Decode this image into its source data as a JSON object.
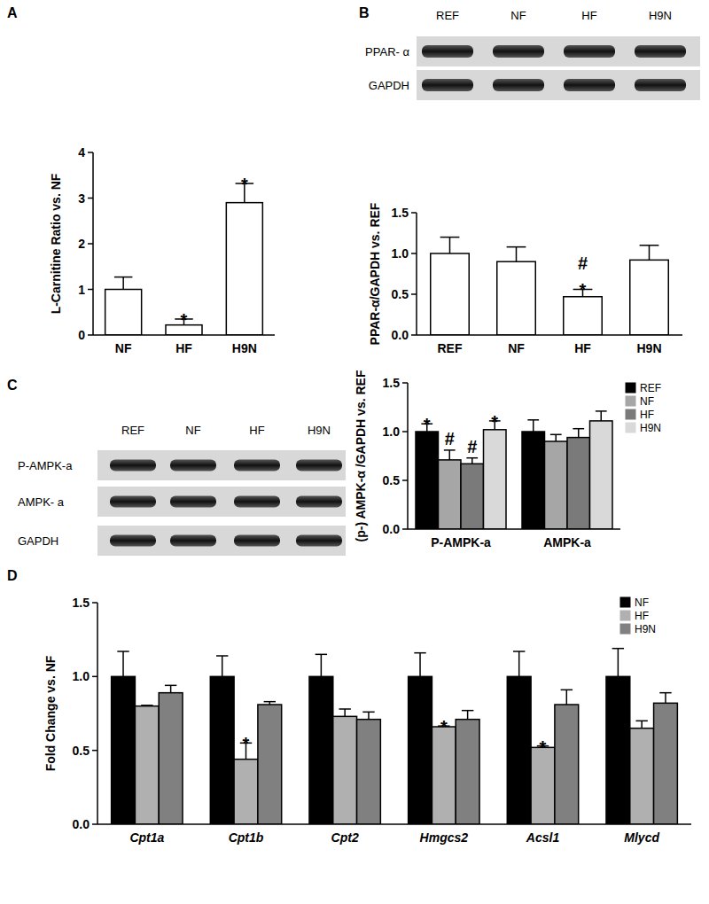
{
  "chart_data": [
    {
      "type": "bar",
      "categories": [
        "NF",
        "HF",
        "H9N"
      ],
      "values": [
        1.0,
        0.22,
        2.9
      ],
      "errors": [
        0.27,
        0.13,
        0.42
      ],
      "annotations": [
        null,
        [
          "*"
        ],
        [
          "*"
        ]
      ],
      "color": "#ffffff",
      "y_label": "L-Carnitine  Ratio vs. NF",
      "ylim": [
        0,
        4
      ],
      "yticks": [
        0,
        1,
        2,
        3,
        4
      ]
    },
    {
      "type": "bar",
      "categories": [
        "REF",
        "NF",
        "HF",
        "H9N"
      ],
      "values": [
        1.0,
        0.9,
        0.47,
        0.92
      ],
      "errors": [
        0.2,
        0.18,
        0.09,
        0.18
      ],
      "annotations": [
        null,
        null,
        [
          "*",
          "#"
        ],
        null
      ],
      "color": "#ffffff",
      "y_label": "PPAR-α/GAPDH vs. REF",
      "ylim": [
        0,
        1.5
      ],
      "yticks": [
        {
          "value": 0,
          "label": "0.0"
        },
        {
          "value": 0.5,
          "label": "0.5"
        },
        {
          "value": 1,
          "label": "1.0"
        },
        {
          "value": 1.5,
          "label": "1.5"
        }
      ]
    },
    {
      "type": "bar",
      "categories": [
        "P-AMPK-a",
        "AMPK-a"
      ],
      "y_label": "(p-) AMPK-α /GAPDH vs. REF",
      "legend": "upper right",
      "series": [
        {
          "name": "REF",
          "color": "#000000",
          "values": [
            1.0,
            1.0
          ],
          "errors": [
            0.08,
            0.12
          ],
          "annotations": [
            [
              "*"
            ],
            null
          ]
        },
        {
          "name": "NF",
          "color": "#a6a6a6",
          "values": [
            0.71,
            0.9
          ],
          "errors": [
            0.1,
            0.07
          ],
          "annotations": [
            [
              "#"
            ],
            null
          ]
        },
        {
          "name": "HF",
          "color": "#7a7a7a",
          "values": [
            0.67,
            0.94
          ],
          "errors": [
            0.06,
            0.09
          ],
          "annotations": [
            [
              "#"
            ],
            null
          ]
        },
        {
          "name": "H9N",
          "color": "#d9d9d9",
          "values": [
            1.02,
            1.11
          ],
          "errors": [
            0.09,
            0.1
          ],
          "annotations": [
            [
              "*"
            ],
            null
          ]
        }
      ],
      "ylim": [
        0,
        1.5
      ],
      "yticks": [
        {
          "value": 0,
          "label": "0.0"
        },
        {
          "value": 0.5,
          "label": "0.5"
        },
        {
          "value": 1,
          "label": "1.0"
        },
        {
          "value": 1.5,
          "label": "1.5"
        }
      ]
    },
    {
      "type": "bar",
      "categories": [
        "Cpt1a",
        "Cpt1b",
        "Cpt2",
        "Hmgcs2",
        "Acsl1",
        "Mlycd"
      ],
      "y_label": "Fold Change vs. NF",
      "legend": "upper right",
      "series": [
        {
          "name": "NF",
          "color": "#000000",
          "values": [
            1.0,
            1.0,
            1.0,
            1.0,
            1.0,
            1.0
          ],
          "errors": [
            0.17,
            0.14,
            0.15,
            0.16,
            0.17,
            0.19
          ],
          "annotations": [
            null,
            null,
            null,
            null,
            null,
            null
          ]
        },
        {
          "name": "HF",
          "color": "#b0b0b0",
          "values": [
            0.8,
            0.44,
            0.73,
            0.66,
            0.52,
            0.65
          ],
          "errors": [
            0.005,
            0.11,
            0.05,
            0.005,
            0.01,
            0.05
          ],
          "annotations": [
            null,
            [
              "*"
            ],
            null,
            [
              "*"
            ],
            [
              "*"
            ],
            null
          ]
        },
        {
          "name": "H9N",
          "color": "#808080",
          "values": [
            0.89,
            0.81,
            0.71,
            0.71,
            0.81,
            0.82
          ],
          "errors": [
            0.05,
            0.02,
            0.05,
            0.06,
            0.1,
            0.07
          ],
          "annotations": [
            null,
            null,
            null,
            null,
            null,
            null
          ]
        }
      ],
      "ylim": [
        0,
        1.5
      ],
      "yticks": [
        {
          "value": 0,
          "label": "0.0"
        },
        {
          "value": 0.5,
          "label": "0.5"
        },
        {
          "value": 1,
          "label": "1.0"
        },
        {
          "value": 1.5,
          "label": "1.5"
        }
      ]
    }
  ],
  "panels": {
    "labels": [
      "A",
      "B",
      "C",
      "D"
    ],
    "blots": [
      {
        "lanes": [
          "REF",
          "NF",
          "HF",
          "H9N"
        ],
        "rows": [
          "PPAR- α",
          "GAPDH"
        ]
      },
      {
        "lanes": [
          "REF",
          "NF",
          "HF",
          "H9N"
        ],
        "rows": [
          "P-AMPK-a",
          "AMPK- a",
          "GAPDH"
        ]
      }
    ]
  }
}
